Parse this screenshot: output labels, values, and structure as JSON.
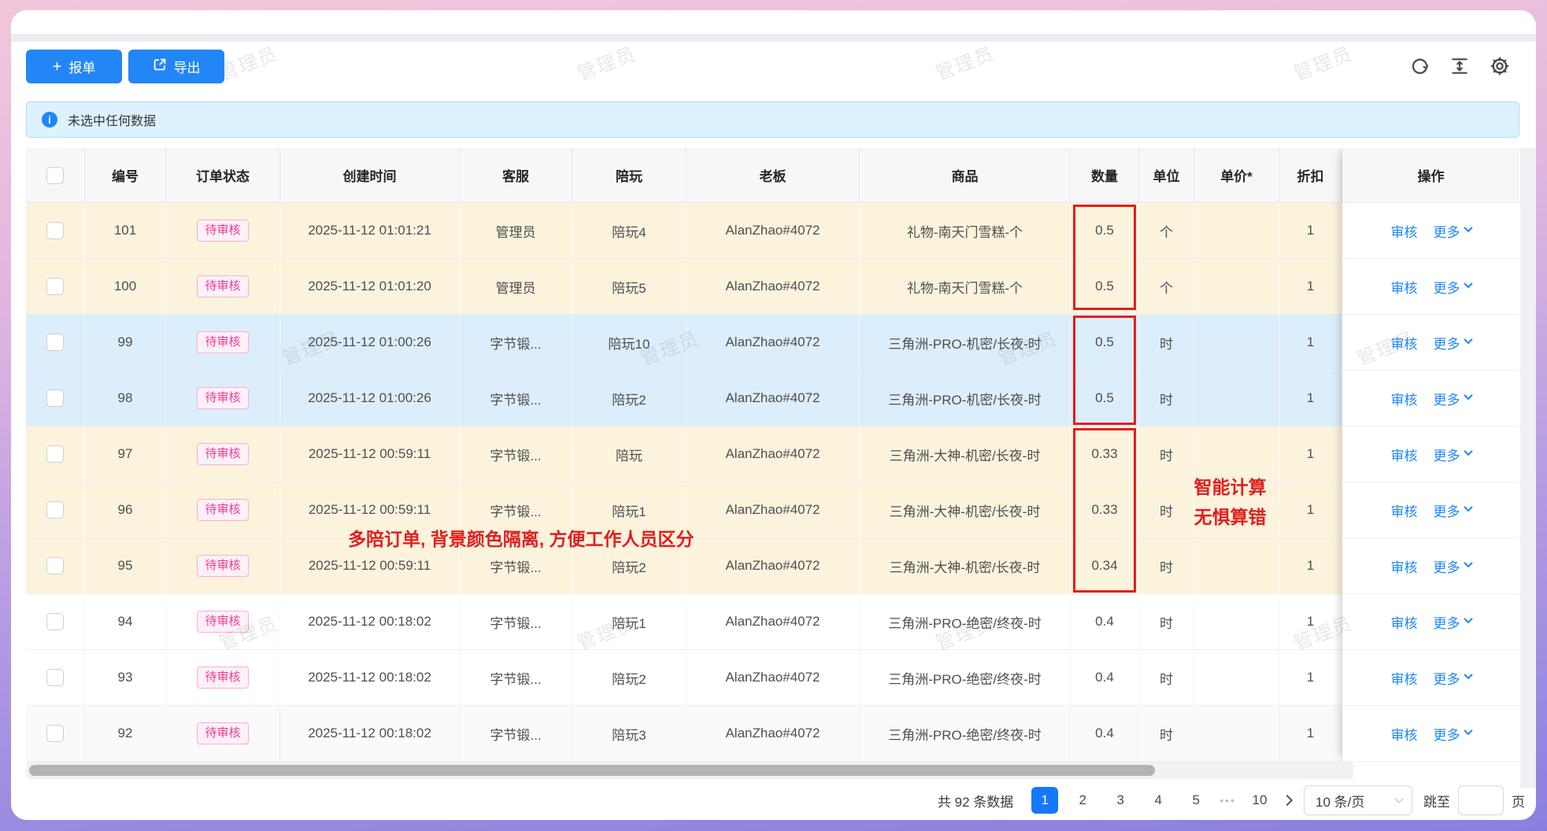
{
  "toolbar": {
    "report_label": "报单",
    "export_label": "导出"
  },
  "alert": {
    "text": "未选中任何数据"
  },
  "watermark": {
    "text": "管理员"
  },
  "table": {
    "columns": {
      "id": "编号",
      "status": "订单状态",
      "created": "创建时间",
      "agent": "客服",
      "companion": "陪玩",
      "boss": "老板",
      "product": "商品",
      "qty": "数量",
      "unit": "单位",
      "price": "单价*",
      "discount": "折扣",
      "actions": "操作"
    },
    "actions": {
      "review": "审核",
      "more": "更多"
    },
    "rows": [
      {
        "id": "101",
        "status": "待审核",
        "created": "2025-11-12 01:01:21",
        "agent": "管理员",
        "companion": "陪玩4",
        "boss": "AlanZhao#4072",
        "product": "礼物-南天门雪糕-个",
        "qty": "0.5",
        "unit": "个",
        "price": "",
        "discount": "1",
        "group": "cream"
      },
      {
        "id": "100",
        "status": "待审核",
        "created": "2025-11-12 01:01:20",
        "agent": "管理员",
        "companion": "陪玩5",
        "boss": "AlanZhao#4072",
        "product": "礼物-南天门雪糕-个",
        "qty": "0.5",
        "unit": "个",
        "price": "",
        "discount": "1",
        "group": "cream"
      },
      {
        "id": "99",
        "status": "待审核",
        "created": "2025-11-12 01:00:26",
        "agent": "字节锻...",
        "companion": "陪玩10",
        "boss": "AlanZhao#4072",
        "product": "三角洲-PRO-机密/长夜-时",
        "qty": "0.5",
        "unit": "时",
        "price": "",
        "discount": "1",
        "group": "blue"
      },
      {
        "id": "98",
        "status": "待审核",
        "created": "2025-11-12 01:00:26",
        "agent": "字节锻...",
        "companion": "陪玩2",
        "boss": "AlanZhao#4072",
        "product": "三角洲-PRO-机密/长夜-时",
        "qty": "0.5",
        "unit": "时",
        "price": "",
        "discount": "1",
        "group": "blue"
      },
      {
        "id": "97",
        "status": "待审核",
        "created": "2025-11-12 00:59:11",
        "agent": "字节锻...",
        "companion": "陪玩",
        "boss": "AlanZhao#4072",
        "product": "三角洲-大神-机密/长夜-时",
        "qty": "0.33",
        "unit": "时",
        "price": "",
        "discount": "1",
        "group": "cream"
      },
      {
        "id": "96",
        "status": "待审核",
        "created": "2025-11-12 00:59:11",
        "agent": "字节锻...",
        "companion": "陪玩1",
        "boss": "AlanZhao#4072",
        "product": "三角洲-大神-机密/长夜-时",
        "qty": "0.33",
        "unit": "时",
        "price": "",
        "discount": "1",
        "group": "cream"
      },
      {
        "id": "95",
        "status": "待审核",
        "created": "2025-11-12 00:59:11",
        "agent": "字节锻...",
        "companion": "陪玩2",
        "boss": "AlanZhao#4072",
        "product": "三角洲-大神-机密/长夜-时",
        "qty": "0.34",
        "unit": "时",
        "price": "",
        "discount": "1",
        "group": "cream"
      },
      {
        "id": "94",
        "status": "待审核",
        "created": "2025-11-12 00:18:02",
        "agent": "字节锻...",
        "companion": "陪玩1",
        "boss": "AlanZhao#4072",
        "product": "三角洲-PRO-绝密/终夜-时",
        "qty": "0.4",
        "unit": "时",
        "price": "",
        "discount": "1",
        "group": "white"
      },
      {
        "id": "93",
        "status": "待审核",
        "created": "2025-11-12 00:18:02",
        "agent": "字节锻...",
        "companion": "陪玩2",
        "boss": "AlanZhao#4072",
        "product": "三角洲-PRO-绝密/终夜-时",
        "qty": "0.4",
        "unit": "时",
        "price": "",
        "discount": "1",
        "group": "white"
      },
      {
        "id": "92",
        "status": "待审核",
        "created": "2025-11-12 00:18:02",
        "agent": "字节锻...",
        "companion": "陪玩3",
        "boss": "AlanZhao#4072",
        "product": "三角洲-PRO-绝密/终夜-时",
        "qty": "0.4",
        "unit": "时",
        "price": "",
        "discount": "1",
        "group": "hover"
      }
    ]
  },
  "annotations": {
    "multi_order": "多陪订单, 背景颜色隔离, 方便工作人员区分",
    "smart_calc_line1": "智能计算",
    "smart_calc_line2": "无惧算错"
  },
  "pagination": {
    "total_text": "共 92 条数据",
    "pages": [
      "1",
      "2",
      "3",
      "4",
      "5"
    ],
    "active_page": "1",
    "ellipsis": "•••",
    "last_page": "10",
    "page_size": "10 条/页",
    "jump_label": "跳至",
    "jump_suffix": "页"
  },
  "colors": {
    "accent_blue": "#1677ff",
    "button_blue": "#2286f7",
    "link_blue": "#1f86f9",
    "badge_pink": "#eb3b97",
    "annotation_red": "#e0201c",
    "row_cream": "#fcf3dd",
    "row_blue": "#dcedfb",
    "alert_bg": "#ddf2fd"
  }
}
